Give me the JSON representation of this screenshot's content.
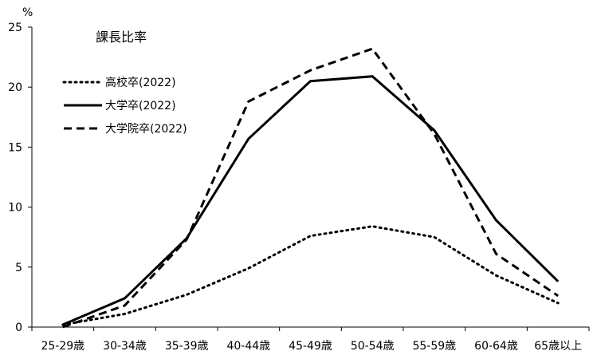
{
  "chart_data": {
    "type": "line",
    "title": "課長比率",
    "ylabel": "%",
    "xlabel": "",
    "categories": [
      "25-29歳",
      "30-34歳",
      "35-39歳",
      "40-44歳",
      "45-49歳",
      "50-54歳",
      "55-59歳",
      "60-64歳",
      "65歳以上"
    ],
    "ylim": [
      0,
      25
    ],
    "yticks": [
      0,
      5,
      10,
      15,
      20,
      25
    ],
    "grid": false,
    "legend_position": "top-left",
    "series": [
      {
        "name": "高校卒(2022)",
        "style": "dotted",
        "values": [
          0.2,
          1.1,
          2.7,
          4.9,
          7.6,
          8.4,
          7.5,
          4.3,
          2.0
        ]
      },
      {
        "name": "大学卒(2022)",
        "style": "solid",
        "values": [
          0.2,
          2.4,
          7.4,
          15.7,
          20.5,
          20.9,
          16.4,
          8.9,
          3.8
        ]
      },
      {
        "name": "大学院卒(2022)",
        "style": "dashed",
        "values": [
          0.0,
          1.8,
          7.3,
          18.8,
          21.4,
          23.2,
          16.1,
          6.1,
          2.6
        ]
      }
    ],
    "colors": {
      "line": "#000000",
      "axis": "#000000"
    }
  }
}
